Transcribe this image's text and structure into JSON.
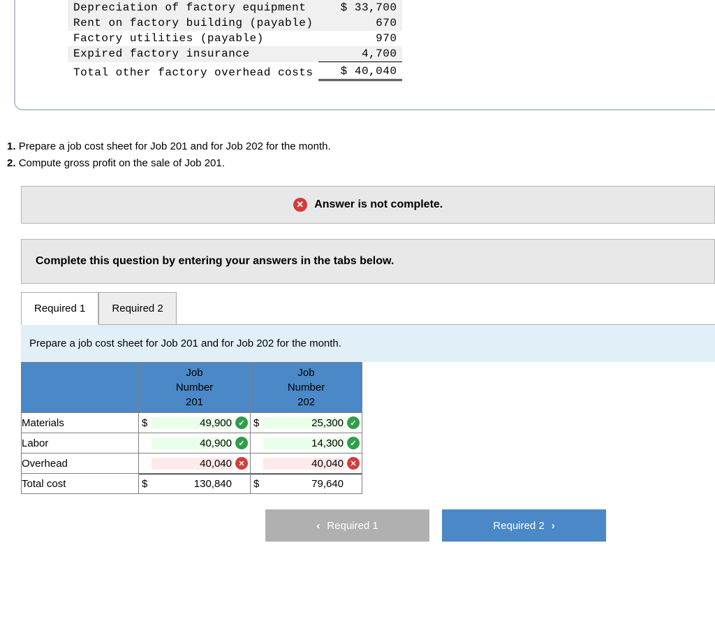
{
  "overhead": {
    "rows": [
      {
        "label": "Depreciation of factory equipment",
        "amount": "33,700",
        "currency": "$ ",
        "shade": true
      },
      {
        "label": "Rent on factory building (payable)",
        "amount": "670",
        "currency": "",
        "shade": true
      },
      {
        "label": "Factory utilities (payable)",
        "amount": "970",
        "currency": "",
        "shade": false
      },
      {
        "label": "Expired factory insurance",
        "amount": "4,700",
        "currency": "",
        "shade": true
      }
    ],
    "total_label": "Total other factory overhead costs",
    "total_amount": "40,040",
    "total_currency": "$ "
  },
  "instructions": {
    "line1_num": "1.",
    "line1": "Prepare a job cost sheet for Job 201 and for Job 202 for the month.",
    "line2_num": "2.",
    "line2": "Compute gross profit on the sale of Job 201."
  },
  "banner": {
    "text": "Answer is not complete."
  },
  "instr2": "Complete this question by entering your answers in the tabs below.",
  "tabs": {
    "t1": "Required 1",
    "t2": "Required 2"
  },
  "tab_body": "Prepare a job cost sheet for Job 201 and for Job 202 for the month.",
  "cost_table": {
    "col1_header": "Job\nNumber\n201",
    "col2_header": "Job\nNumber\n202",
    "rows": [
      {
        "label": "Materials",
        "c1_cur": "$",
        "c1_val": "49,900",
        "c1_mark": "check",
        "c2_cur": "$",
        "c2_val": "25,300",
        "c2_mark": "check"
      },
      {
        "label": "Labor",
        "c1_cur": "",
        "c1_val": "40,900",
        "c1_mark": "check",
        "c2_cur": "",
        "c2_val": "14,300",
        "c2_mark": "check"
      },
      {
        "label": "Overhead",
        "c1_cur": "",
        "c1_val": "40,040",
        "c1_mark": "cross",
        "c2_cur": "",
        "c2_val": "40,040",
        "c2_mark": "cross"
      }
    ],
    "total": {
      "label": "Total cost",
      "c1_cur": "$",
      "c1_val": "130,840",
      "c2_cur": "$",
      "c2_val": "79,640"
    }
  },
  "nav": {
    "prev": "Required 1",
    "next": "Required 2"
  },
  "colors": {
    "header_blue": "#4a88c7",
    "check_green": "#2e9e48",
    "cross_red": "#d73a3a",
    "panel_gray": "#e8e8e9",
    "tabbody_blue": "#e1eff8"
  }
}
